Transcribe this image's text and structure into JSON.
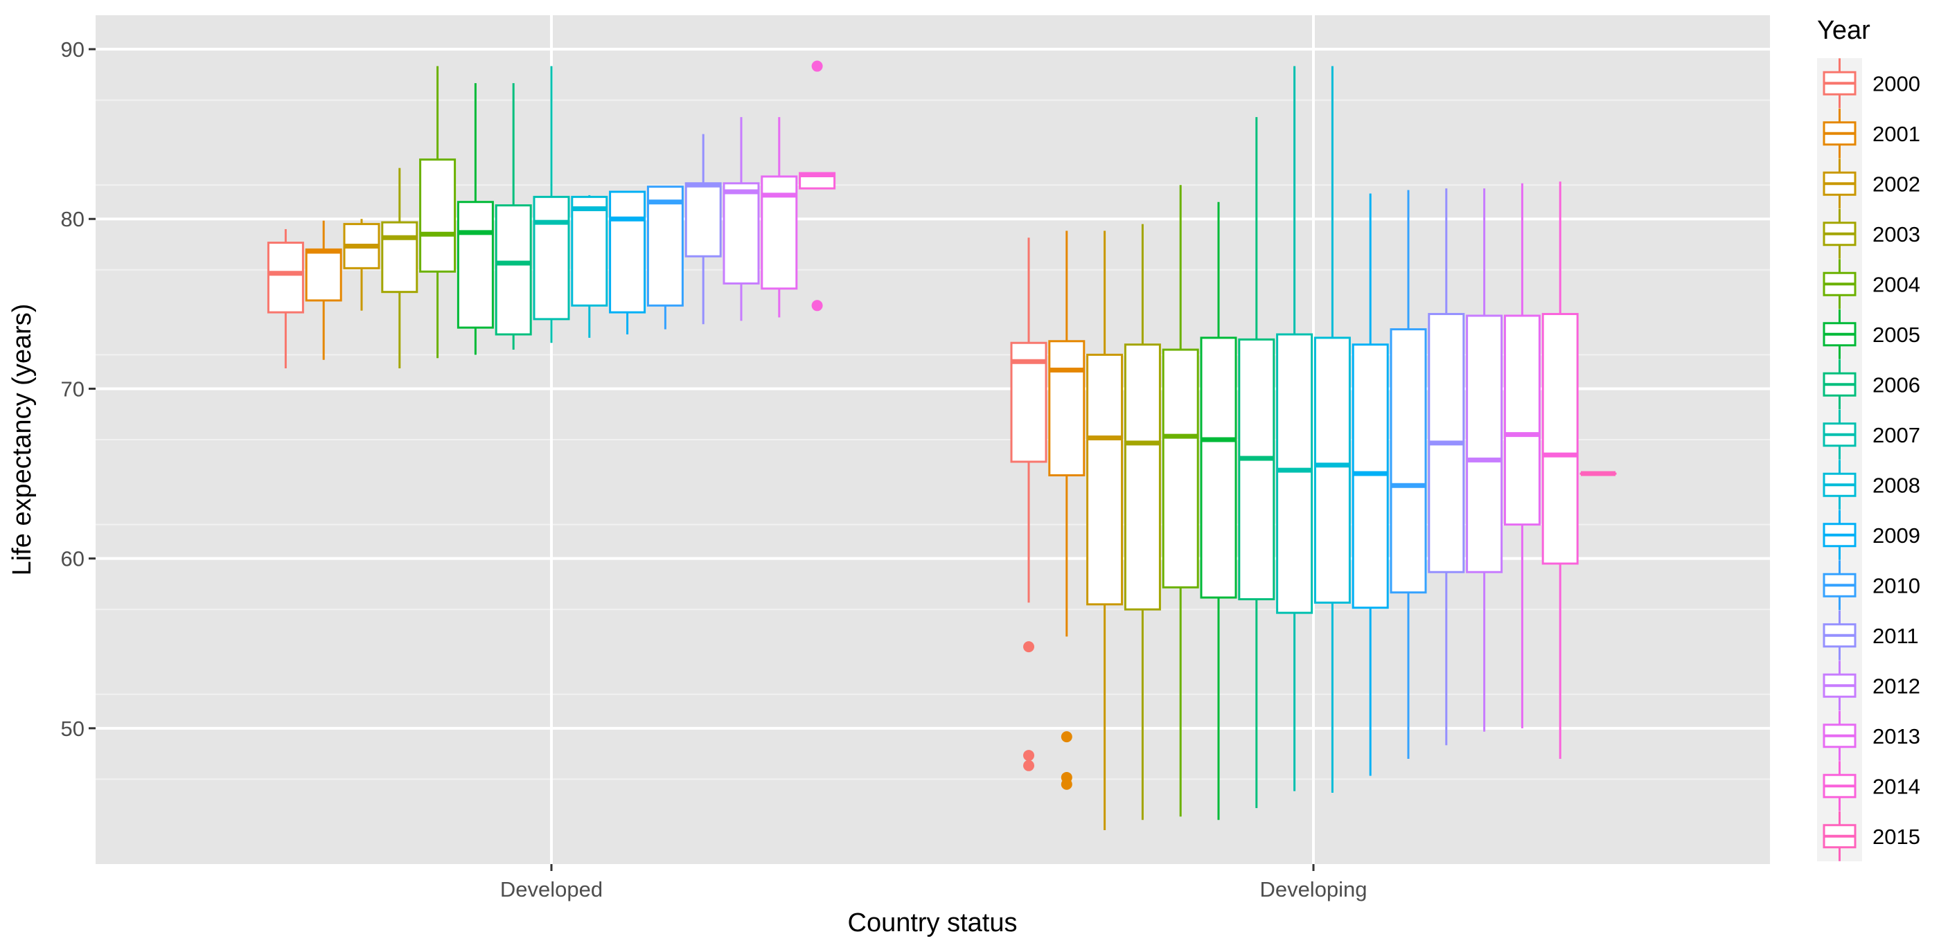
{
  "chart_data": {
    "type": "boxplot",
    "title": "",
    "xlabel": "Country status",
    "ylabel": "Life expectancy (years)",
    "ylim": [
      42,
      92
    ],
    "yticks": [
      50,
      60,
      70,
      80,
      90
    ],
    "categories": [
      "Developed",
      "Developing"
    ],
    "legend": {
      "title": "Year",
      "position": "right",
      "entries": [
        "2000",
        "2001",
        "2002",
        "2003",
        "2004",
        "2005",
        "2006",
        "2007",
        "2008",
        "2009",
        "2010",
        "2011",
        "2012",
        "2013",
        "2014",
        "2015"
      ]
    },
    "grid": true,
    "series": [
      {
        "name": "2000",
        "color": "#F8766D",
        "groups": [
          {
            "category": "Developed",
            "min": 71.2,
            "q1": 74.5,
            "median": 76.8,
            "q3": 78.6,
            "max": 79.4,
            "outliers": []
          },
          {
            "category": "Developing",
            "min": 57.4,
            "q1": 65.7,
            "median": 71.6,
            "q3": 72.7,
            "max": 78.9,
            "outliers": [
              54.8,
              48.4,
              47.8
            ]
          }
        ]
      },
      {
        "name": "2001",
        "color": "#E58700",
        "groups": [
          {
            "category": "Developed",
            "min": 71.7,
            "q1": 75.2,
            "median": 78.1,
            "q3": 78.2,
            "max": 79.9,
            "outliers": []
          },
          {
            "category": "Developing",
            "min": 55.4,
            "q1": 64.9,
            "median": 71.1,
            "q3": 72.8,
            "max": 79.3,
            "outliers": [
              49.5,
              47.1,
              46.7
            ]
          }
        ]
      },
      {
        "name": "2002",
        "color": "#C99800",
        "groups": [
          {
            "category": "Developed",
            "min": 74.6,
            "q1": 77.1,
            "median": 78.4,
            "q3": 79.7,
            "max": 80.0,
            "outliers": []
          },
          {
            "category": "Developing",
            "min": 44.0,
            "q1": 57.3,
            "median": 67.1,
            "q3": 72.0,
            "max": 79.3,
            "outliers": []
          }
        ]
      },
      {
        "name": "2003",
        "color": "#A3A500",
        "groups": [
          {
            "category": "Developed",
            "min": 71.2,
            "q1": 75.7,
            "median": 78.9,
            "q3": 79.8,
            "max": 83.0,
            "outliers": []
          },
          {
            "category": "Developing",
            "min": 44.6,
            "q1": 57.0,
            "median": 66.8,
            "q3": 72.6,
            "max": 79.7,
            "outliers": []
          }
        ]
      },
      {
        "name": "2004",
        "color": "#6BB100",
        "groups": [
          {
            "category": "Developed",
            "min": 71.8,
            "q1": 76.9,
            "median": 79.1,
            "q3": 83.5,
            "max": 89.0,
            "outliers": []
          },
          {
            "category": "Developing",
            "min": 44.8,
            "q1": 58.3,
            "median": 67.2,
            "q3": 72.3,
            "max": 82.0,
            "outliers": []
          }
        ]
      },
      {
        "name": "2005",
        "color": "#00BA38",
        "groups": [
          {
            "category": "Developed",
            "min": 72.0,
            "q1": 73.6,
            "median": 79.2,
            "q3": 81.0,
            "max": 88.0,
            "outliers": []
          },
          {
            "category": "Developing",
            "min": 44.6,
            "q1": 57.7,
            "median": 67.0,
            "q3": 73.0,
            "max": 81.0,
            "outliers": []
          }
        ]
      },
      {
        "name": "2006",
        "color": "#00BF7D",
        "groups": [
          {
            "category": "Developed",
            "min": 72.3,
            "q1": 73.2,
            "median": 77.4,
            "q3": 80.8,
            "max": 88.0,
            "outliers": []
          },
          {
            "category": "Developing",
            "min": 45.3,
            "q1": 57.6,
            "median": 65.9,
            "q3": 72.9,
            "max": 86.0,
            "outliers": []
          }
        ]
      },
      {
        "name": "2007",
        "color": "#00C0AF",
        "groups": [
          {
            "category": "Developed",
            "min": 72.7,
            "q1": 74.1,
            "median": 79.8,
            "q3": 81.3,
            "max": 89.0,
            "outliers": []
          },
          {
            "category": "Developing",
            "min": 46.3,
            "q1": 56.8,
            "median": 65.2,
            "q3": 73.2,
            "max": 89.0,
            "outliers": []
          }
        ]
      },
      {
        "name": "2008",
        "color": "#00BCD8",
        "groups": [
          {
            "category": "Developed",
            "min": 73.0,
            "q1": 74.9,
            "median": 80.6,
            "q3": 81.3,
            "max": 81.4,
            "outliers": []
          },
          {
            "category": "Developing",
            "min": 46.2,
            "q1": 57.4,
            "median": 65.5,
            "q3": 73.0,
            "max": 89.0,
            "outliers": []
          }
        ]
      },
      {
        "name": "2009",
        "color": "#00B0F6",
        "groups": [
          {
            "category": "Developed",
            "min": 73.2,
            "q1": 74.5,
            "median": 80.0,
            "q3": 81.6,
            "max": 81.6,
            "outliers": []
          },
          {
            "category": "Developing",
            "min": 47.2,
            "q1": 57.1,
            "median": 65.0,
            "q3": 72.6,
            "max": 81.5,
            "outliers": []
          }
        ]
      },
      {
        "name": "2010",
        "color": "#35A2FF",
        "groups": [
          {
            "category": "Developed",
            "min": 73.5,
            "q1": 74.9,
            "median": 81.0,
            "q3": 81.9,
            "max": 81.9,
            "outliers": []
          },
          {
            "category": "Developing",
            "min": 48.2,
            "q1": 58.0,
            "median": 64.3,
            "q3": 73.5,
            "max": 81.7,
            "outliers": []
          }
        ]
      },
      {
        "name": "2011",
        "color": "#9590FF",
        "groups": [
          {
            "category": "Developed",
            "min": 73.8,
            "q1": 77.8,
            "median": 82.0,
            "q3": 82.1,
            "max": 85.0,
            "outliers": []
          },
          {
            "category": "Developing",
            "min": 49.0,
            "q1": 59.2,
            "median": 66.8,
            "q3": 74.4,
            "max": 81.8,
            "outliers": []
          }
        ]
      },
      {
        "name": "2012",
        "color": "#C77CFF",
        "groups": [
          {
            "category": "Developed",
            "min": 74.0,
            "q1": 76.2,
            "median": 81.6,
            "q3": 82.1,
            "max": 86.0,
            "outliers": []
          },
          {
            "category": "Developing",
            "min": 49.8,
            "q1": 59.2,
            "median": 65.8,
            "q3": 74.3,
            "max": 81.8,
            "outliers": []
          }
        ]
      },
      {
        "name": "2013",
        "color": "#E76BF3",
        "groups": [
          {
            "category": "Developed",
            "min": 74.2,
            "q1": 75.9,
            "median": 81.4,
            "q3": 82.5,
            "max": 86.0,
            "outliers": []
          },
          {
            "category": "Developing",
            "min": 50.0,
            "q1": 62.0,
            "median": 67.3,
            "q3": 74.3,
            "max": 82.1,
            "outliers": []
          }
        ]
      },
      {
        "name": "2014",
        "color": "#FA62DB",
        "groups": [
          {
            "category": "Developed",
            "min": 81.8,
            "q1": 81.8,
            "median": 82.6,
            "q3": 82.7,
            "max": 82.7,
            "outliers": [
              89.0,
              74.9
            ]
          },
          {
            "category": "Developing",
            "min": 48.2,
            "q1": 59.7,
            "median": 66.1,
            "q3": 74.4,
            "max": 82.2,
            "outliers": []
          }
        ]
      },
      {
        "name": "2015",
        "color": "#FF62BC",
        "groups": [
          {
            "category": "Developing",
            "min": 65.0,
            "q1": 65.0,
            "median": 65.0,
            "q3": 65.0,
            "max": 65.0,
            "outliers": []
          }
        ]
      }
    ]
  }
}
